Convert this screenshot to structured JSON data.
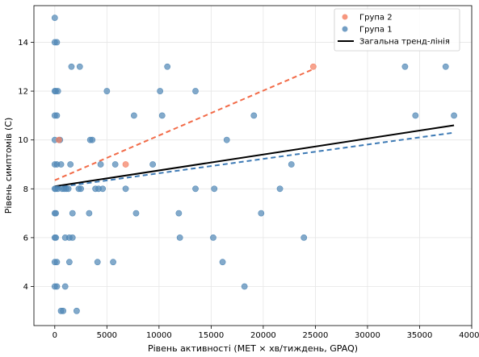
{
  "chart_data": {
    "type": "scatter",
    "xlabel": "Рівень активності (MET × хв/тиждень, GPAQ)",
    "ylabel": "Рівень симптомів (С)",
    "xlim": [
      -2000,
      40000
    ],
    "ylim": [
      2.4,
      15.5
    ],
    "xticks": [
      0,
      5000,
      10000,
      15000,
      20000,
      25000,
      30000,
      35000,
      40000
    ],
    "yticks": [
      4,
      6,
      8,
      10,
      12,
      14
    ],
    "grid": true,
    "legend_position": "top-right",
    "colors": {
      "group1": "#4f86b5",
      "group2": "#f47c5e",
      "overall": "#000000",
      "group1_trend": "#3d7ab5",
      "group2_trend": "#f26b48"
    },
    "series": [
      {
        "name": "Група 2",
        "points": [
          [
            400,
            10
          ],
          [
            6800,
            9
          ],
          [
            24800,
            13
          ]
        ]
      },
      {
        "name": "Група 1",
        "points": [
          [
            0,
            15
          ],
          [
            0,
            14
          ],
          [
            200,
            14
          ],
          [
            0,
            12
          ],
          [
            100,
            12
          ],
          [
            300,
            12
          ],
          [
            0,
            11
          ],
          [
            200,
            11
          ],
          [
            0,
            10
          ],
          [
            500,
            10
          ],
          [
            0,
            9
          ],
          [
            200,
            9
          ],
          [
            600,
            9
          ],
          [
            0,
            8
          ],
          [
            100,
            8
          ],
          [
            300,
            8
          ],
          [
            700,
            8
          ],
          [
            900,
            8
          ],
          [
            1100,
            8
          ],
          [
            1300,
            8
          ],
          [
            2300,
            8
          ],
          [
            3900,
            8
          ],
          [
            4200,
            8
          ],
          [
            4600,
            8
          ],
          [
            6800,
            8
          ],
          [
            13500,
            8
          ],
          [
            15300,
            8
          ],
          [
            21600,
            8
          ],
          [
            0,
            7
          ],
          [
            100,
            7
          ],
          [
            1700,
            7
          ],
          [
            3300,
            7
          ],
          [
            7800,
            7
          ],
          [
            11900,
            7
          ],
          [
            19800,
            7
          ],
          [
            0,
            6
          ],
          [
            100,
            6
          ],
          [
            1000,
            6
          ],
          [
            1400,
            6
          ],
          [
            1700,
            6
          ],
          [
            12000,
            6
          ],
          [
            15200,
            6
          ],
          [
            23900,
            6
          ],
          [
            0,
            5
          ],
          [
            200,
            5
          ],
          [
            1400,
            5
          ],
          [
            4100,
            5
          ],
          [
            5600,
            5
          ],
          [
            16100,
            5
          ],
          [
            0,
            4
          ],
          [
            200,
            4
          ],
          [
            1000,
            4
          ],
          [
            18200,
            4
          ],
          [
            600,
            3
          ],
          [
            800,
            3
          ],
          [
            2100,
            3
          ],
          [
            1600,
            13
          ],
          [
            2400,
            13
          ],
          [
            10800,
            13
          ],
          [
            33600,
            13
          ],
          [
            37500,
            13
          ],
          [
            5000,
            12
          ],
          [
            10100,
            12
          ],
          [
            13500,
            12
          ],
          [
            7600,
            11
          ],
          [
            10300,
            11
          ],
          [
            19100,
            11
          ],
          [
            34600,
            11
          ],
          [
            38300,
            11
          ],
          [
            3400,
            10
          ],
          [
            3600,
            10
          ],
          [
            16500,
            10
          ],
          [
            1500,
            9
          ],
          [
            4400,
            9
          ],
          [
            5800,
            9
          ],
          [
            9400,
            9
          ],
          [
            22700,
            9
          ],
          [
            2500,
            8
          ]
        ]
      }
    ],
    "trend_lines": [
      {
        "name": "Група 2",
        "style": "dashed",
        "x": [
          0,
          24800
        ],
        "y": [
          8.35,
          12.9
        ]
      },
      {
        "name": "Група 1",
        "style": "dashed",
        "x": [
          0,
          38300
        ],
        "y": [
          8.05,
          10.3
        ]
      },
      {
        "name": "Загальна тренд-лінія",
        "style": "solid",
        "x": [
          0,
          38300
        ],
        "y": [
          8.1,
          10.6
        ]
      }
    ],
    "legend": [
      "Група 2",
      "Група 1",
      "Загальна тренд-лінія"
    ]
  }
}
